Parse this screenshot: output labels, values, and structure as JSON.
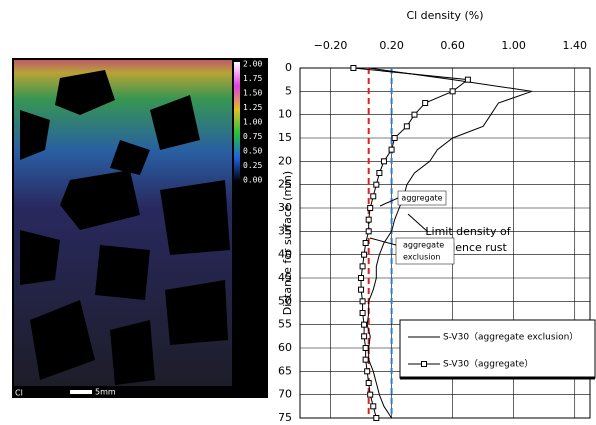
{
  "image": {
    "colorbar_labels": [
      "2.00",
      "1.75",
      "1.50",
      "1.25",
      "1.00",
      "0.75",
      "0.50",
      "0.25",
      "0.00"
    ],
    "label": "Cl",
    "scale": "5mm"
  },
  "chart_data": {
    "type": "line",
    "orientation": "horizontal",
    "xlabel": "Cl density (%)",
    "ylabel": "Distance for surface (mm)",
    "xlim": [
      -0.4,
      1.5
    ],
    "ylim": [
      0,
      75
    ],
    "y_inverted": true,
    "grid": true,
    "xticks": [
      {
        "value": -0.2,
        "label": "−0.20"
      },
      {
        "value": 0.2,
        "label": "0.20"
      },
      {
        "value": 0.6,
        "label": "0.60"
      },
      {
        "value": 1.0,
        "label": "1.00"
      },
      {
        "value": 1.4,
        "label": "1.40"
      }
    ],
    "yticks": [
      0,
      5,
      10,
      15,
      20,
      25,
      30,
      35,
      40,
      45,
      50,
      55,
      60,
      65,
      70,
      75
    ],
    "x": [
      0,
      2.5,
      5,
      7.5,
      10,
      12.5,
      15,
      17.5,
      20,
      22.5,
      25,
      27.5,
      30,
      32.5,
      35,
      37.5,
      40,
      42.5,
      45,
      47.5,
      50,
      52.5,
      55,
      57.5,
      60,
      62.5,
      65,
      67.5,
      70,
      72.5,
      75
    ],
    "series": [
      {
        "name": "S-V30（aggregate exclusion）",
        "color": "#000000",
        "marker": "none",
        "values": [
          0.05,
          0.6,
          1.12,
          0.9,
          0.85,
          0.8,
          0.6,
          0.5,
          0.45,
          0.35,
          0.3,
          0.28,
          0.25,
          0.22,
          0.2,
          0.15,
          0.12,
          0.1,
          0.1,
          0.08,
          0.05,
          0.05,
          0.04,
          0.06,
          0.05,
          0.05,
          0.08,
          0.1,
          0.12,
          0.15,
          0.2
        ]
      },
      {
        "name": "S-V30（aggregate）",
        "color": "#000000",
        "marker": "square",
        "values": [
          -0.05,
          0.7,
          0.6,
          0.42,
          0.35,
          0.3,
          0.22,
          0.2,
          0.15,
          0.12,
          0.1,
          0.08,
          0.06,
          0.05,
          0.05,
          0.03,
          0.02,
          0.01,
          0.0,
          0.0,
          0.01,
          0.01,
          0.02,
          0.02,
          0.03,
          0.03,
          0.04,
          0.05,
          0.06,
          0.08,
          0.1
        ]
      }
    ],
    "reference_lines": [
      {
        "value": 0.05,
        "color": "#e02020"
      },
      {
        "value": 0.2,
        "color": "#2f7fd0"
      }
    ],
    "annotations": {
      "aggregate": "aggregate",
      "limit": [
        "Limit density of",
        "incidence rust"
      ],
      "exclusion": [
        "aggregate",
        "exclusion"
      ]
    }
  }
}
